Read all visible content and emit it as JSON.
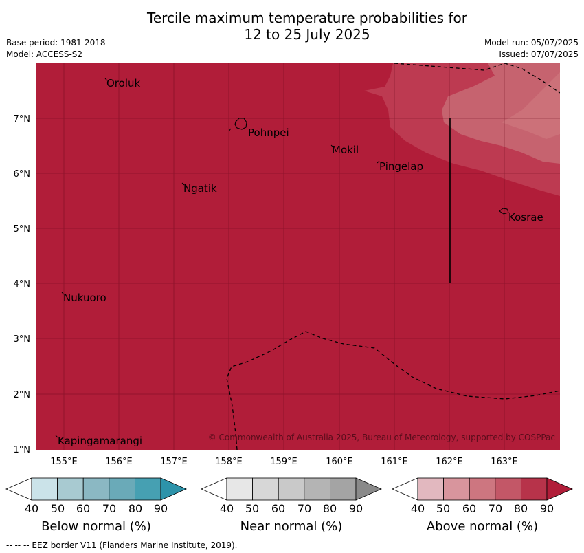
{
  "title": {
    "line1": "Tercile maximum temperature probabilities for",
    "line2": "12 to 25 July 2025"
  },
  "meta": {
    "base_period": "Base period: 1981-2018",
    "model": "Model: ACCESS-S2",
    "model_run": "Model run: 05/07/2025",
    "issued": "Issued: 07/07/2025"
  },
  "map": {
    "lat_ticks": [
      "7°N",
      "6°N",
      "5°N",
      "4°N",
      "3°N",
      "2°N",
      "1°N"
    ],
    "lon_ticks": [
      "155°E",
      "156°E",
      "157°E",
      "158°E",
      "159°E",
      "160°E",
      "161°E",
      "162°E",
      "163°E"
    ],
    "places": [
      "Oroluk",
      "Pohnpei",
      "Mokil",
      "Pingelap",
      "Ngatik",
      "Kosrae",
      "Nukuoro",
      "Kapingamarangi"
    ],
    "copyright": "© Commonwealth of Australia 2025, Bureau of Meteorology, supported by COSPPac",
    "colors": {
      "above90": "#b11d39",
      "above80": "#bd3a51",
      "above70": "#c96f78"
    }
  },
  "colorbars": [
    {
      "label": "Below normal (%)",
      "ticks": [
        "40",
        "50",
        "60",
        "70",
        "80",
        "90"
      ],
      "colors": [
        "#ffffff",
        "#cbe3e9",
        "#a8cad1",
        "#8bb8c3",
        "#6aaab8",
        "#46a0b2",
        "#2d93aa"
      ]
    },
    {
      "label": "Near normal (%)",
      "ticks": [
        "40",
        "50",
        "60",
        "70",
        "80",
        "90"
      ],
      "colors": [
        "#ffffff",
        "#e7e7e7",
        "#d7d7d7",
        "#c9c9c9",
        "#b4b4b4",
        "#a4a4a4",
        "#8a8a8a"
      ]
    },
    {
      "label": "Above normal (%)",
      "ticks": [
        "40",
        "50",
        "60",
        "70",
        "80",
        "90"
      ],
      "colors": [
        "#ffffff",
        "#e2b8bf",
        "#d8959d",
        "#cd7680",
        "#c35767",
        "#b7334a",
        "#b11d39"
      ]
    }
  ],
  "footer": "--  --  -- EEZ border V11 (Flanders Marine Institute, 2019)."
}
